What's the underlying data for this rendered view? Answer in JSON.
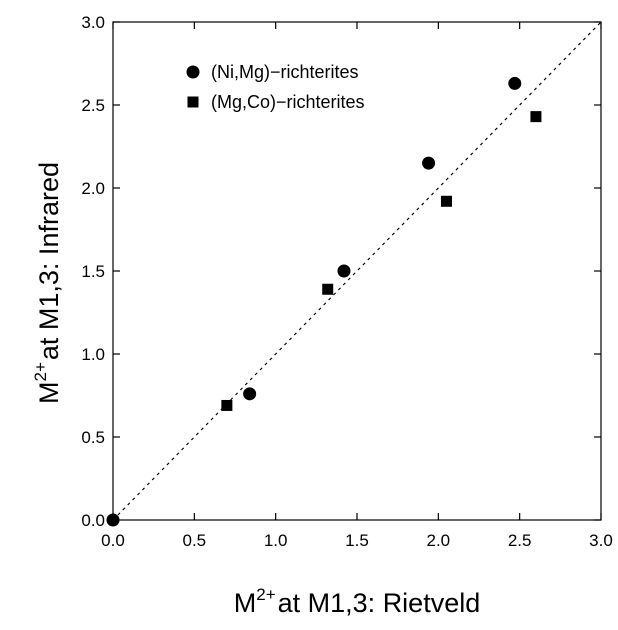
{
  "chart_data": {
    "type": "scatter",
    "title": "",
    "xlabel": {
      "base": "M",
      "sup": "2+",
      "rest": "at M1,3: Rietveld"
    },
    "ylabel": {
      "base": "M",
      "sup": "2+",
      "rest": "at M1,3: Infrared"
    },
    "xlim": [
      0,
      3
    ],
    "ylim": [
      0,
      3
    ],
    "xticks": [
      "0.0",
      "0.5",
      "1.0",
      "1.5",
      "2.0",
      "2.5",
      "3.0"
    ],
    "yticks": [
      "0.0",
      "0.5",
      "1.0",
      "1.5",
      "2.0",
      "2.5",
      "3.0"
    ],
    "grid": false,
    "legend_position": "top-left",
    "reference_line": {
      "style": "dotted",
      "from": [
        0,
        0
      ],
      "to": [
        3,
        3
      ]
    },
    "series": [
      {
        "name": "(Ni,Mg)−richterites",
        "marker": "circle",
        "color": "#000000",
        "points": [
          [
            0.0,
            0.0
          ],
          [
            0.84,
            0.76
          ],
          [
            1.42,
            1.5
          ],
          [
            1.94,
            2.15
          ],
          [
            2.47,
            2.63
          ]
        ]
      },
      {
        "name": "(Mg,Co)−richterites",
        "marker": "square",
        "color": "#000000",
        "points": [
          [
            0.7,
            0.69
          ],
          [
            1.32,
            1.39
          ],
          [
            2.05,
            1.92
          ],
          [
            2.6,
            2.43
          ]
        ]
      }
    ]
  }
}
